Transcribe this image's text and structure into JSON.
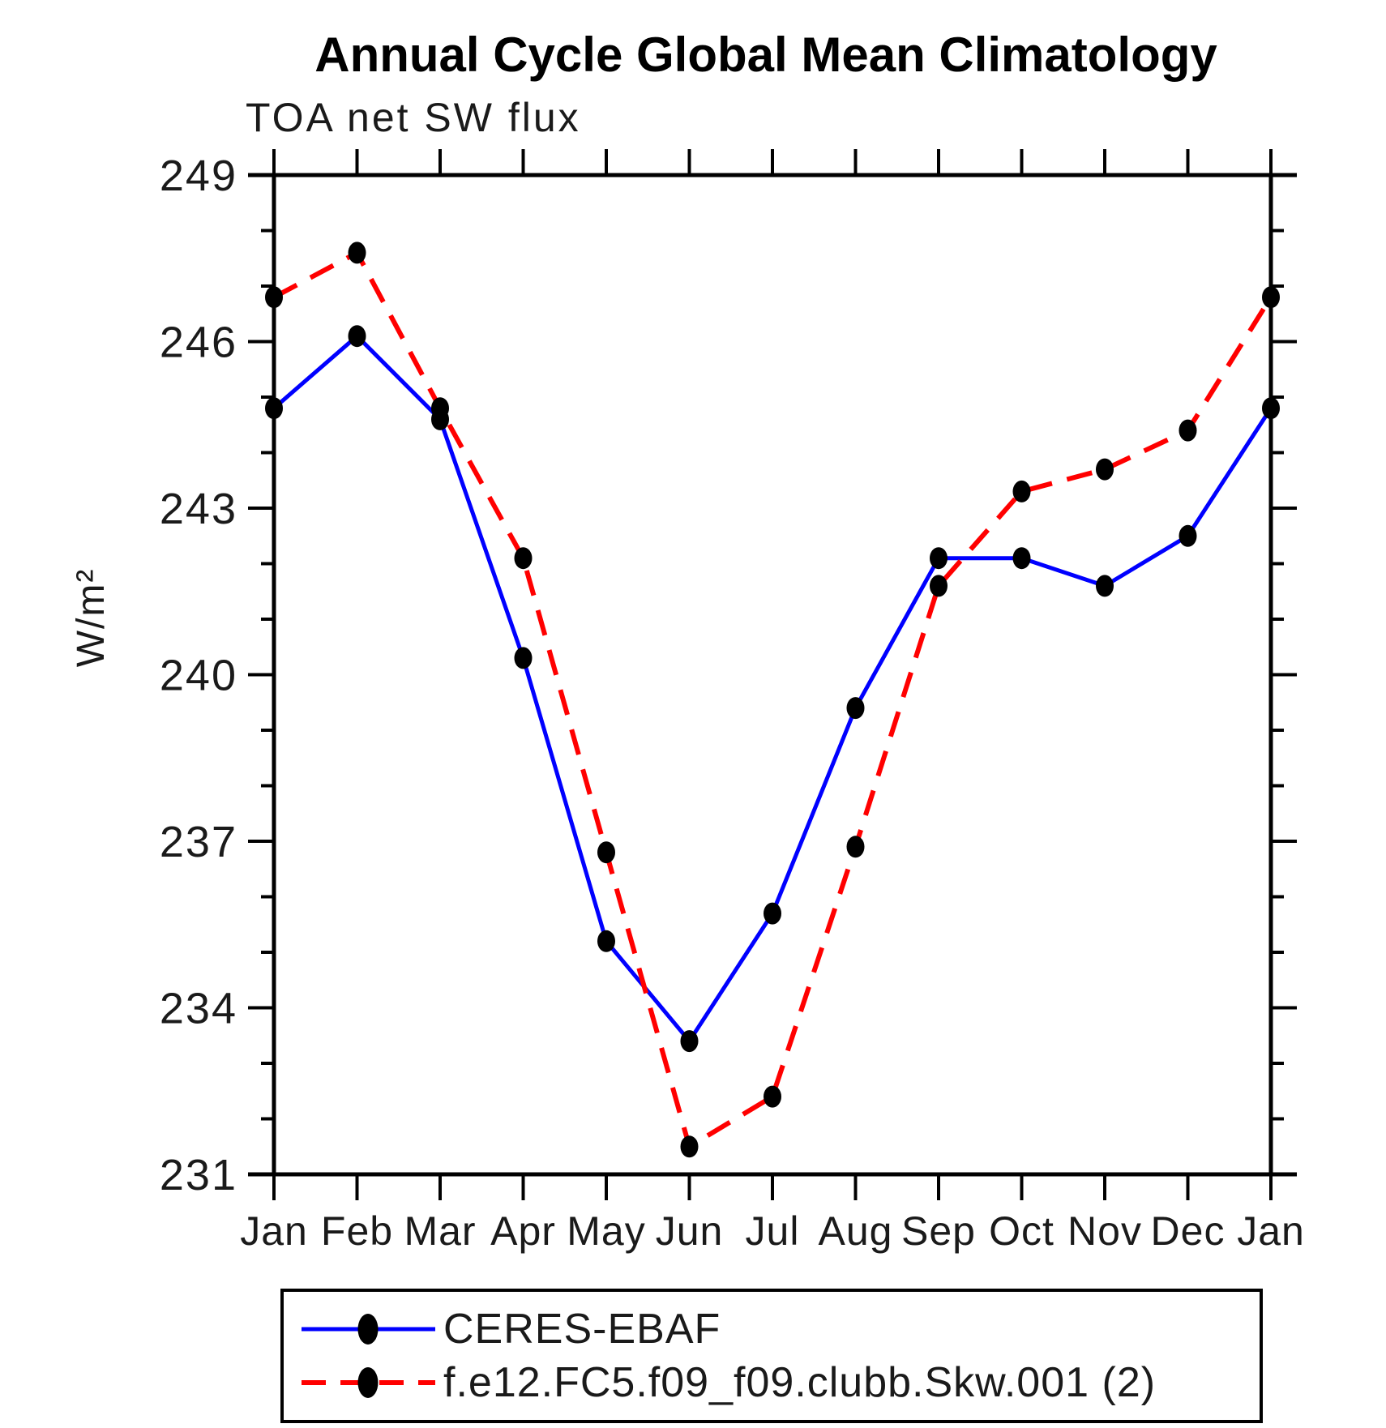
{
  "chart_data": {
    "type": "line",
    "title": "Annual Cycle Global Mean Climatology",
    "subtitle": "TOA net SW flux",
    "ylabel": "W/m²",
    "xlabel": "",
    "categories": [
      "Jan",
      "Feb",
      "Mar",
      "Apr",
      "May",
      "Jun",
      "Jul",
      "Aug",
      "Sep",
      "Oct",
      "Nov",
      "Dec",
      "Jan"
    ],
    "ylim": [
      231,
      249
    ],
    "ytick_major_interval": 3,
    "ytick_minor_interval": 1,
    "grid": false,
    "legend_position": "bottom-left",
    "axis_color": "#000000",
    "background_color": "#ffffff",
    "marker_shape": "filled-ellipse",
    "marker_color": "#000000",
    "series": [
      {
        "name": "CERES-EBAF",
        "color": "#0000ff",
        "line_style": "solid",
        "values": [
          244.8,
          246.1,
          244.6,
          240.3,
          235.2,
          233.4,
          235.7,
          239.4,
          242.1,
          242.1,
          241.6,
          242.5,
          244.8
        ]
      },
      {
        "name": "f.e12.FC5.f09_f09.clubb.Skw.001 (2)",
        "color": "#ff0000",
        "line_style": "dashed",
        "values": [
          246.8,
          247.6,
          244.8,
          242.1,
          236.8,
          231.5,
          232.4,
          236.9,
          241.6,
          243.3,
          243.7,
          244.4,
          246.8
        ]
      }
    ]
  }
}
